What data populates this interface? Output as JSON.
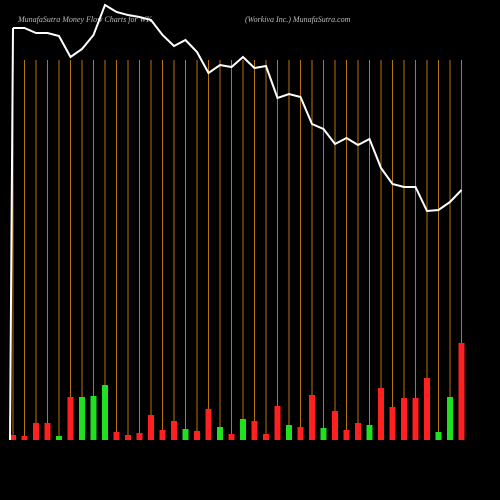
{
  "chart_data": {
    "type": "bar",
    "title": "MunafaSutra  Money  Flow  Charts for WK",
    "subtitle": "(Workiva  Inc.) MunafaSutra.com",
    "categories": [
      null,
      null,
      null,
      null,
      null,
      null,
      null,
      null,
      null,
      null,
      null,
      null,
      null,
      null,
      null,
      null,
      null,
      null,
      null,
      null,
      null,
      null,
      null,
      null,
      null,
      null,
      null,
      null,
      null,
      null,
      null,
      null,
      null,
      null,
      null,
      null,
      null,
      null,
      null,
      null
    ],
    "values": [
      5,
      4,
      17,
      17,
      4,
      43,
      43,
      44,
      55,
      8,
      5,
      7,
      25,
      10,
      19,
      11,
      9,
      31,
      13,
      6,
      21,
      19,
      6,
      34,
      15,
      13,
      45,
      12,
      29,
      10,
      17,
      15,
      52,
      33,
      42,
      42,
      62,
      8,
      43,
      97
    ],
    "colors": [
      "#ff2020",
      "#ff2020",
      "#ff2020",
      "#ff2020",
      "#20e020",
      "#ff2020",
      "#20e020",
      "#20e020",
      "#20e020",
      "#ff2020",
      "#ff2020",
      "#ff2020",
      "#ff2020",
      "#ff2020",
      "#ff2020",
      "#20e020",
      "#ff2020",
      "#ff2020",
      "#20e020",
      "#ff2020",
      "#20e020",
      "#ff2020",
      "#ff2020",
      "#ff2020",
      "#20e020",
      "#ff2020",
      "#ff2020",
      "#20e020",
      "#ff2020",
      "#ff2020",
      "#ff2020",
      "#20e020",
      "#ff2020",
      "#ff2020",
      "#ff2020",
      "#ff2020",
      "#ff2020",
      "#20e020",
      "#20e020",
      "#ff2020"
    ],
    "line": {
      "color": "#ffffff",
      "values": [
        412,
        412,
        407,
        407,
        404,
        383,
        391,
        405,
        435,
        428,
        425,
        423,
        420,
        405,
        394,
        400,
        388,
        367,
        375,
        373,
        383,
        372,
        374,
        342,
        346,
        343,
        316,
        311,
        296,
        302,
        295,
        301,
        272,
        256,
        253,
        253,
        229,
        230,
        238,
        250
      ]
    },
    "grid_color": "#b8740f"
  }
}
